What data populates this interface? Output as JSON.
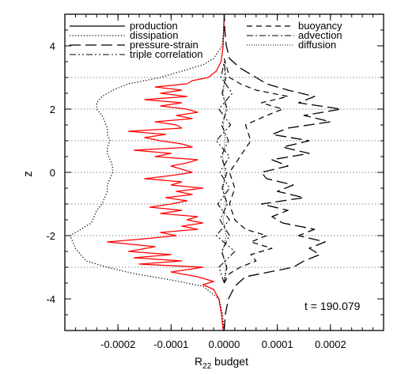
{
  "chart_data": {
    "type": "line",
    "xlabel_main": "R",
    "xlabel_sub": "22",
    "xlabel_rest": " budget",
    "ylabel": "z",
    "annotation": "t = 190.079",
    "xlim": [
      -0.0003,
      0.0003
    ],
    "ylim": [
      -5,
      5
    ],
    "xticks": [
      -0.0002,
      -0.0001,
      0.0,
      0.0001,
      0.0002
    ],
    "xtick_labels": [
      "-0.0002",
      "-0.0001",
      "0.0000",
      "0.0001",
      "0.0002"
    ],
    "yticks": [
      -4,
      -2,
      0,
      2,
      4
    ],
    "ytick_labels": [
      "-4",
      "-2",
      "0",
      "2",
      "4"
    ],
    "dotted_gridlines_z": [
      -3,
      -2,
      -1,
      0,
      1,
      2,
      3
    ],
    "legend_left": [
      "production",
      "dissipation",
      "pressure-strain",
      "triple correlation"
    ],
    "legend_right": [
      "buoyancy",
      "advection",
      "diffusion"
    ],
    "series": [
      {
        "name": "production",
        "color": "#ff0000",
        "style": "solid",
        "z": [
          -5.0,
          -4.5,
          -4.0,
          -3.7,
          -3.55,
          -3.45,
          -3.3,
          -3.15,
          -3.0,
          -2.9,
          -2.8,
          -2.7,
          -2.6,
          -2.5,
          -2.35,
          -2.2,
          -2.1,
          -2.0,
          -1.9,
          -1.8,
          -1.7,
          -1.6,
          -1.5,
          -1.4,
          -1.3,
          -1.2,
          -1.1,
          -1.0,
          -0.9,
          -0.8,
          -0.7,
          -0.6,
          -0.5,
          -0.4,
          -0.3,
          -0.2,
          -0.1,
          0.0,
          0.1,
          0.2,
          0.3,
          0.4,
          0.5,
          0.6,
          0.7,
          0.8,
          0.9,
          1.0,
          1.1,
          1.2,
          1.3,
          1.4,
          1.5,
          1.6,
          1.7,
          1.8,
          1.9,
          2.0,
          2.1,
          2.2,
          2.3,
          2.4,
          2.5,
          2.6,
          2.7,
          2.8,
          2.9,
          3.0,
          3.2,
          3.5,
          4.0,
          4.5,
          5.0
        ],
        "x": [
          -2e-06,
          -5e-06,
          -1e-05,
          -2e-05,
          -4e-05,
          -2e-05,
          -5e-05,
          -0.0001,
          -4e-05,
          -0.00016,
          -8e-05,
          -0.00017,
          -0.0001,
          -0.00018,
          -0.00013,
          -0.00022,
          -0.00015,
          -9e-05,
          -0.00012,
          -5e-05,
          -8e-05,
          -4e-05,
          -7e-05,
          -5e-05,
          -0.00012,
          -8e-05,
          -0.00014,
          -0.0001,
          -7e-05,
          -0.00011,
          -6e-05,
          -9e-05,
          -4e-05,
          -0.0001,
          -8e-05,
          -0.00015,
          -0.0001,
          -6e-05,
          -8e-05,
          -0.0001,
          -7e-05,
          -5e-05,
          -0.00013,
          -0.0001,
          -0.00017,
          -6e-05,
          -8e-05,
          -0.00012,
          -0.00015,
          -0.00011,
          -0.00018,
          -8e-05,
          -9e-05,
          -0.00013,
          -6e-05,
          -9e-05,
          -5e-05,
          -7e-05,
          -0.00012,
          -8e-05,
          -0.00015,
          -7e-05,
          -0.00012,
          -8e-05,
          -0.00013,
          -7e-05,
          -6e-05,
          -3e-05,
          -1.5e-05,
          -6e-06,
          -2e-06,
          -1e-06,
          0.0
        ]
      },
      {
        "name": "dissipation",
        "color": "#000000",
        "style": "dotted",
        "z": [
          -5.0,
          -4.5,
          -4.0,
          -3.6,
          -3.4,
          -3.2,
          -3.0,
          -2.8,
          -2.6,
          -2.4,
          -2.2,
          -2.0,
          -1.8,
          -1.6,
          -1.4,
          -1.2,
          -1.0,
          -0.8,
          -0.6,
          -0.4,
          -0.2,
          0.0,
          0.2,
          0.4,
          0.6,
          0.8,
          1.0,
          1.2,
          1.4,
          1.6,
          1.8,
          2.0,
          2.2,
          2.4,
          2.6,
          2.8,
          3.0,
          3.2,
          3.4,
          3.6,
          4.0,
          4.5,
          5.0
        ],
        "x": [
          -1e-06,
          -3e-06,
          -1e-05,
          -4e-05,
          -0.0001,
          -0.00017,
          -0.00022,
          -0.00026,
          -0.00027,
          -0.00028,
          -0.000285,
          -0.00029,
          -0.00027,
          -0.00025,
          -0.000245,
          -0.00024,
          -0.00023,
          -0.000225,
          -0.00022,
          -0.00022,
          -0.000215,
          -0.00021,
          -0.00021,
          -0.000215,
          -0.00022,
          -0.00022,
          -0.000215,
          -0.00022,
          -0.00022,
          -0.000225,
          -0.00023,
          -0.00024,
          -0.00024,
          -0.00023,
          -0.00021,
          -0.00018,
          -0.00012,
          -8e-05,
          -4e-05,
          -2e-05,
          -4e-06,
          -1e-06,
          0.0
        ]
      },
      {
        "name": "pressure-strain",
        "color": "#000000",
        "style": "longdash",
        "z": [
          -5.0,
          -4.5,
          -4.0,
          -3.6,
          -3.3,
          -3.0,
          -2.8,
          -2.6,
          -2.4,
          -2.2,
          -2.0,
          -1.8,
          -1.6,
          -1.4,
          -1.2,
          -1.0,
          -0.8,
          -0.6,
          -0.4,
          -0.2,
          0.0,
          0.2,
          0.4,
          0.6,
          0.8,
          1.0,
          1.2,
          1.4,
          1.6,
          1.8,
          2.0,
          2.2,
          2.4,
          2.6,
          2.8,
          3.0,
          3.3,
          3.6,
          4.0,
          4.5,
          5.0
        ],
        "x": [
          0.0,
          2e-06,
          8e-06,
          2e-05,
          4e-05,
          0.00013,
          0.00015,
          0.00018,
          0.00016,
          0.00019,
          0.00014,
          0.00017,
          0.00011,
          9e-05,
          0.00012,
          7e-05,
          0.00015,
          0.0001,
          0.00013,
          8e-05,
          7e-05,
          0.00012,
          9e-05,
          0.00016,
          0.00011,
          0.00016,
          9e-05,
          0.00012,
          0.0002,
          0.00015,
          0.00022,
          0.00014,
          0.00017,
          0.00012,
          8e-05,
          6e-05,
          3e-05,
          1e-05,
          4e-06,
          1e-06,
          0.0
        ]
      },
      {
        "name": "buoyancy",
        "color": "#000000",
        "style": "dashed",
        "z": [
          -3.5,
          -3.2,
          -3.0,
          -2.8,
          -2.6,
          -2.4,
          -2.2,
          -2.0,
          -1.8,
          -1.5,
          -1.0,
          -0.5,
          0.0,
          0.5,
          1.0,
          1.5,
          1.8,
          2.0,
          2.2,
          2.4,
          2.6,
          2.8,
          3.0,
          3.3,
          3.6
        ],
        "x": [
          0.0,
          1e-05,
          3e-05,
          6e-05,
          5e-05,
          9e-05,
          5e-05,
          8e-05,
          4e-05,
          2e-05,
          1e-05,
          2e-05,
          1e-05,
          3e-05,
          5e-05,
          4e-05,
          8e-05,
          0.00011,
          7e-05,
          0.00012,
          6e-05,
          3e-05,
          1e-05,
          5e-06,
          0.0
        ]
      },
      {
        "name": "advection",
        "color": "#000000",
        "style": "dashdot",
        "z": [
          -3.5,
          -3.0,
          -2.5,
          -2.0,
          -1.5,
          -1.0,
          -0.5,
          0.0,
          0.5,
          1.0,
          1.5,
          2.0,
          2.5,
          3.0,
          3.5
        ],
        "x": [
          0.0,
          5e-06,
          -5e-06,
          1e-05,
          -8e-06,
          6e-06,
          -4e-06,
          5e-06,
          -6e-06,
          8e-06,
          -5e-06,
          6e-06,
          -4e-06,
          3e-06,
          0.0
        ]
      },
      {
        "name": "triple correlation",
        "color": "#000000",
        "style": "dashdotdot",
        "z": [
          -3.5,
          -3.0,
          -2.5,
          -2.0,
          -1.5,
          -1.0,
          -0.5,
          0.0,
          0.5,
          1.0,
          1.5,
          2.0,
          2.5,
          3.0,
          3.5
        ],
        "x": [
          0.0,
          -1e-05,
          2e-05,
          -1.5e-05,
          1e-05,
          -1.2e-05,
          1e-05,
          -8e-06,
          1e-05,
          -1.5e-05,
          1.2e-05,
          -1e-05,
          1.5e-05,
          -6e-06,
          0.0
        ]
      },
      {
        "name": "diffusion",
        "color": "#000000",
        "style": "finedot",
        "z": [
          -3.5,
          -3.0,
          -2.5,
          -2.0,
          -1.5,
          -1.0,
          -0.5,
          0.0,
          0.5,
          1.0,
          1.5,
          2.0,
          2.5,
          3.0,
          3.5
        ],
        "x": [
          0.0,
          3e-06,
          -3e-06,
          4e-06,
          -2e-06,
          3e-06,
          -2e-06,
          2e-06,
          -3e-06,
          2e-06,
          -2e-06,
          3e-06,
          -2e-06,
          1e-06,
          0.0
        ]
      }
    ]
  }
}
